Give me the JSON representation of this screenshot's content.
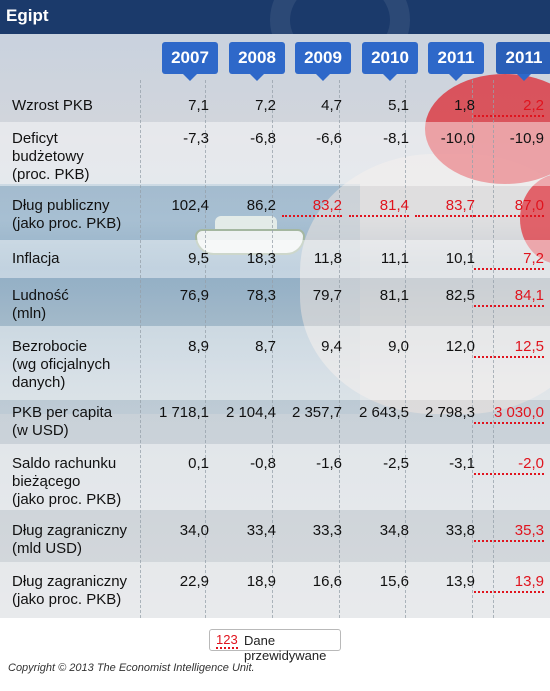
{
  "title": "Egipt",
  "years": [
    {
      "label": "2007",
      "forecast": false
    },
    {
      "label": "2008",
      "forecast": false
    },
    {
      "label": "2009",
      "forecast": false
    },
    {
      "label": "2010",
      "forecast": false
    },
    {
      "label": "2011",
      "forecast": false
    },
    {
      "label": "2011",
      "forecast": true
    }
  ],
  "rows": [
    {
      "label": [
        "Wzrost PKB"
      ],
      "values": [
        "7,1",
        "7,2",
        "4,7",
        "5,1",
        "1,8",
        "2,2"
      ],
      "forecast": [
        false,
        false,
        false,
        false,
        false,
        true
      ]
    },
    {
      "label": [
        "Deficyt",
        "budżetowy",
        "(proc. PKB)"
      ],
      "values": [
        "-7,3",
        "-6,8",
        "-6,6",
        "-8,1",
        "-10,0",
        "-10,9"
      ],
      "forecast": [
        false,
        false,
        false,
        false,
        false,
        false
      ]
    },
    {
      "label": [
        "Dług publiczny",
        "(jako proc. PKB)"
      ],
      "values": [
        "102,4",
        "86,2",
        "83,2",
        "81,4",
        "83,7",
        "87,0"
      ],
      "forecast": [
        false,
        false,
        true,
        true,
        true,
        true
      ]
    },
    {
      "label": [
        "Inflacja"
      ],
      "values": [
        "9,5",
        "18,3",
        "11,8",
        "11,1",
        "10,1",
        "7,2"
      ],
      "forecast": [
        false,
        false,
        false,
        false,
        false,
        true
      ]
    },
    {
      "label": [
        "Ludność",
        "(mln)"
      ],
      "values": [
        "76,9",
        "78,3",
        "79,7",
        "81,1",
        "82,5",
        "84,1"
      ],
      "forecast": [
        false,
        false,
        false,
        false,
        false,
        true
      ]
    },
    {
      "label": [
        "Bezrobocie",
        "(wg oficjalnych",
        "danych)"
      ],
      "values": [
        "8,9",
        "8,7",
        "9,4",
        "9,0",
        "12,0",
        "12,5"
      ],
      "forecast": [
        false,
        false,
        false,
        false,
        false,
        true
      ]
    },
    {
      "label": [
        "PKB per capita",
        "(w USD)"
      ],
      "values": [
        "1 718,1",
        "2 104,4",
        "2 357,7",
        "2 643,5",
        "2 798,3",
        "3 030,0"
      ],
      "forecast": [
        false,
        false,
        false,
        false,
        false,
        true
      ]
    },
    {
      "label": [
        "Saldo rachunku",
        "bieżącego",
        "(jako proc. PKB)"
      ],
      "values": [
        "0,1",
        "-0,8",
        "-1,6",
        "-2,5",
        "-3,1",
        "-2,0"
      ],
      "forecast": [
        false,
        false,
        false,
        false,
        false,
        true
      ]
    },
    {
      "label": [
        "Dług zagraniczny",
        "(mld USD)"
      ],
      "values": [
        "34,0",
        "33,4",
        "33,3",
        "34,8",
        "33,8",
        "35,3"
      ],
      "forecast": [
        false,
        false,
        false,
        false,
        false,
        true
      ]
    },
    {
      "label": [
        "Dług zagraniczny",
        "(jako proc. PKB)"
      ],
      "values": [
        "22,9",
        "18,9",
        "16,6",
        "15,6",
        "13,9",
        "13,9"
      ],
      "forecast": [
        false,
        false,
        false,
        false,
        false,
        true
      ]
    }
  ],
  "legend": {
    "sample": "123",
    "text": "Dane przewidywane"
  },
  "copyright": "Copyright © 2013 The Economist Intelligence Unit.",
  "colors": {
    "header": "#1b3a6b",
    "year_tab": "#2e68c9",
    "forecast_text": "#e0141e"
  }
}
